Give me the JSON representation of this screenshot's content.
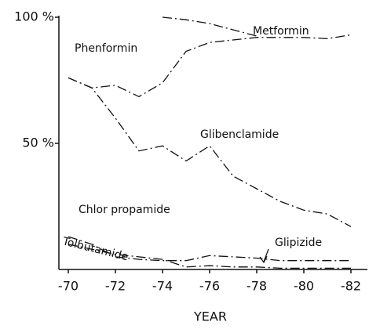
{
  "chart_data": {
    "type": "line",
    "x": [
      -70,
      -71,
      -72,
      -73,
      -74,
      -75,
      -76,
      -77,
      -78,
      -79,
      -80,
      -81,
      -82
    ],
    "series": [
      {
        "color": "#111111",
        "values": [
          10,
          8,
          6,
          5,
          4,
          1,
          1.5,
          1,
          1,
          0.5,
          0.5,
          0.5,
          0.5
        ]
      },
      {
        "color": "#111111",
        "values": [
          13,
          10,
          5,
          4,
          3.5,
          3.5,
          5.5,
          5,
          4.5,
          3.5,
          3.5,
          3.5,
          3.5
        ]
      },
      {
        "color": "#111111",
        "values": [
          76,
          72,
          60,
          47,
          49,
          43,
          49,
          37,
          32,
          27,
          23.5,
          22,
          17
        ]
      },
      {
        "color": "#111111",
        "values": [
          76,
          72,
          73,
          68.5,
          74,
          86.5,
          90,
          91,
          92,
          92,
          92,
          91.5,
          93
        ]
      },
      {
        "color": "#111111",
        "values": [
          null,
          null,
          null,
          null,
          100,
          99,
          97.5,
          95,
          92.5,
          null,
          null,
          null,
          null
        ]
      }
    ],
    "annotations": [
      "Phenformin",
      "Metformin",
      "Glibenclamide",
      "Chlor propamide",
      "Glipizide",
      "Tolbutamide"
    ],
    "xlabel": "YEAR",
    "xlim": [
      -69.6,
      -82.7
    ],
    "xticks": [
      -70,
      -72,
      -74,
      -76,
      -78,
      -80,
      -82
    ],
    "ylim": [
      0,
      100
    ],
    "yticks": [
      {
        "value": 50,
        "label": "50 %"
      },
      {
        "value": 100,
        "label": "100 %"
      }
    ]
  }
}
